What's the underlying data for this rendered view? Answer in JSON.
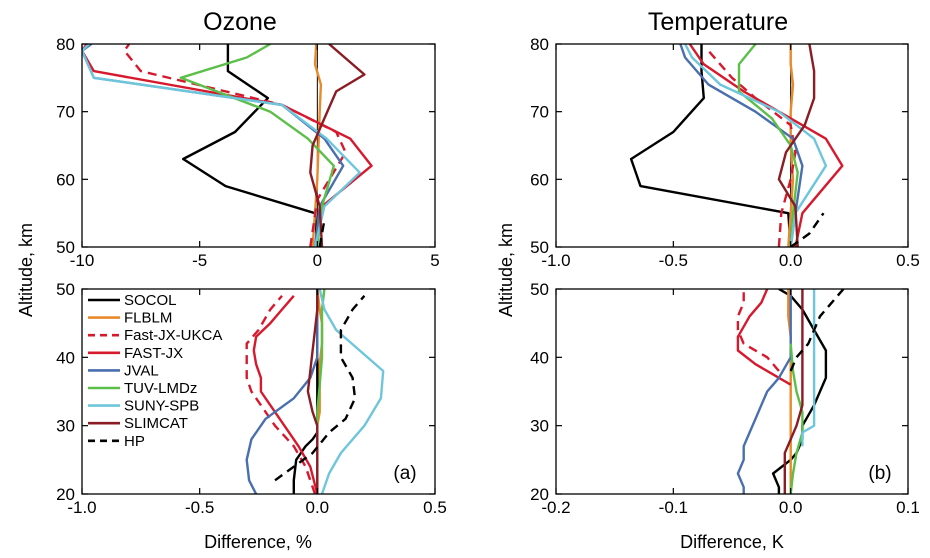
{
  "figure": {
    "ylabel": "Altitude, km",
    "titles": [
      "Ozone",
      "Temperature"
    ],
    "panel_labels": [
      "(a)",
      "(b)"
    ],
    "xlabels": [
      "Difference, %",
      "Difference, K"
    ]
  },
  "legend": [
    {
      "name": "SOCOL",
      "color": "#000000",
      "dash": false
    },
    {
      "name": "FLBLM",
      "color": "#e8892b",
      "dash": false
    },
    {
      "name": "Fast-JX-UKCA",
      "color": "#d7192e",
      "dash": true
    },
    {
      "name": "FAST-JX",
      "color": "#d7192e",
      "dash": false
    },
    {
      "name": "JVAL",
      "color": "#4a6faf",
      "dash": false
    },
    {
      "name": "TUV-LMDz",
      "color": "#5cbf4a",
      "dash": false
    },
    {
      "name": "SUNY-SPB",
      "color": "#6ec6dc",
      "dash": false
    },
    {
      "name": "SLIMCAT",
      "color": "#8b1c24",
      "dash": false
    },
    {
      "name": "HP",
      "color": "#000000",
      "dash": true
    }
  ],
  "chart_data": [
    {
      "type": "line",
      "title": "Ozone",
      "panel": "upper-left",
      "xlabel": "",
      "ylabel": "Altitude, km",
      "xlim": [
        -10,
        5
      ],
      "ylim": [
        50,
        80
      ],
      "xticks": [
        -10,
        -5,
        0,
        5
      ],
      "xtick_labels": [
        "-10",
        "-5",
        "0",
        "5"
      ],
      "yticks": [
        50,
        60,
        70,
        80
      ],
      "ytick_labels": [
        "50",
        "60",
        "70",
        "80"
      ],
      "series": [
        {
          "name": "SOCOL",
          "x": [
            0,
            -0.1,
            -3.9,
            -5.7,
            -3.5,
            -2.1,
            -3.8,
            -3.8
          ],
          "y": [
            50,
            55,
            59,
            63,
            67,
            72,
            76,
            80
          ]
        },
        {
          "name": "FLBLM",
          "x": [
            -0.2,
            -0.1,
            0,
            0.05,
            0.1,
            0.15,
            -0.1,
            -0.05
          ],
          "y": [
            50,
            55,
            60,
            65,
            70,
            74,
            77,
            80
          ]
        },
        {
          "name": "Fast-JX-UKCA",
          "x": [
            -0.3,
            0,
            1.2,
            0.8,
            -1.5,
            -7.5,
            -8.2,
            -8.0
          ],
          "y": [
            50,
            57,
            64,
            67,
            71,
            76,
            79,
            80
          ]
        },
        {
          "name": "FAST-JX",
          "x": [
            -0.1,
            0.2,
            2.3,
            1.4,
            -1.5,
            -9.5,
            -10,
            -9.8
          ],
          "y": [
            50,
            56,
            62,
            66,
            71,
            76,
            79,
            80
          ]
        },
        {
          "name": "JVAL",
          "x": [
            -0.1,
            0.1,
            1.1,
            0.3,
            -1.5,
            -9.5,
            -10,
            -9.6
          ],
          "y": [
            50,
            56,
            62,
            66,
            71,
            75,
            79,
            80
          ]
        },
        {
          "name": "TUV-LMDz",
          "x": [
            0,
            0.2,
            0.7,
            -0.4,
            -2.0,
            -5.8,
            -3.0,
            -2.0
          ],
          "y": [
            50,
            56,
            62,
            66,
            70,
            75,
            78,
            80
          ]
        },
        {
          "name": "SUNY-SPB",
          "x": [
            -0.1,
            0.3,
            1.8,
            0.4,
            -1.5,
            -9.5,
            -10,
            -9.7
          ],
          "y": [
            50,
            56,
            61,
            66,
            71,
            75,
            79,
            80
          ]
        },
        {
          "name": "SLIMCAT",
          "x": [
            0.2,
            0.1,
            -0.3,
            -0.2,
            0.3,
            0.8,
            2.0,
            0.5
          ],
          "y": [
            50,
            56,
            61,
            65,
            69,
            73,
            75.5,
            80
          ]
        },
        {
          "name": "HP",
          "x": [
            0.1,
            0.3
          ],
          "y": [
            50,
            54
          ]
        }
      ]
    },
    {
      "type": "line",
      "title": "Ozone",
      "panel": "lower-left",
      "xlabel": "Difference, %",
      "ylabel": "Altitude, km",
      "xlim": [
        -1.0,
        0.5
      ],
      "ylim": [
        20,
        50
      ],
      "xticks": [
        -1.0,
        -0.5,
        0,
        0.5
      ],
      "xtick_labels": [
        "-1.0",
        "-0.5",
        "0.0",
        "0.5"
      ],
      "yticks": [
        20,
        30,
        40,
        50
      ],
      "ytick_labels": [
        "20",
        "30",
        "40",
        "50"
      ],
      "series": [
        {
          "name": "SOCOL",
          "x": [
            -0.1,
            -0.1,
            -0.09,
            -0.07,
            -0.05,
            -0.02,
            0,
            0,
            0,
            0
          ],
          "y": [
            20,
            22,
            25,
            26,
            27,
            28,
            29,
            35,
            42,
            50
          ]
        },
        {
          "name": "FLBLM",
          "x": [
            0,
            0,
            0,
            0,
            0.01,
            0.01,
            0.01,
            0.02,
            0.02,
            0.01,
            0
          ],
          "y": [
            20,
            25,
            28,
            30,
            32,
            36,
            39,
            42,
            45,
            47,
            50
          ]
        },
        {
          "name": "Fast-JX-UKCA",
          "x": [
            -0.01,
            -0.05,
            -0.1,
            -0.18,
            -0.24,
            -0.28,
            -0.3,
            -0.3,
            -0.3,
            -0.25,
            -0.2,
            -0.15
          ],
          "y": [
            20,
            24,
            27,
            30,
            33,
            35,
            37,
            40,
            42,
            44,
            47,
            49
          ]
        },
        {
          "name": "FAST-JX",
          "x": [
            0,
            -0.03,
            -0.08,
            -0.14,
            -0.2,
            -0.24,
            -0.24,
            -0.26,
            -0.27,
            -0.26,
            -0.2,
            -0.15,
            -0.1
          ],
          "y": [
            20,
            24,
            27,
            30,
            33,
            35,
            37,
            39,
            41,
            43,
            45,
            47,
            49
          ]
        },
        {
          "name": "JVAL",
          "x": [
            -0.26,
            -0.29,
            -0.3,
            -0.28,
            -0.22,
            -0.1,
            -0.03,
            0,
            0,
            0
          ],
          "y": [
            20,
            22,
            25,
            28,
            31,
            34,
            37,
            40,
            45,
            50
          ]
        },
        {
          "name": "TUV-LMDz",
          "x": [
            0,
            0,
            0,
            0,
            0,
            0.01,
            0.02,
            0.02,
            0.02,
            0.03
          ],
          "y": [
            20,
            25,
            28,
            30,
            32,
            36,
            40,
            44,
            47,
            50
          ]
        },
        {
          "name": "SUNY-SPB",
          "x": [
            0.02,
            0.05,
            0.1,
            0.2,
            0.27,
            0.28,
            0.18,
            0.08,
            0.03,
            0.01
          ],
          "y": [
            20,
            23,
            26,
            30,
            34,
            38,
            41,
            44,
            47,
            50
          ]
        },
        {
          "name": "SLIMCAT",
          "x": [
            0,
            0,
            0,
            0,
            -0.02,
            -0.04,
            -0.03,
            -0.02,
            -0.01,
            0,
            0
          ],
          "y": [
            20,
            25,
            28,
            30,
            32,
            35,
            38,
            41,
            44,
            47,
            50
          ]
        },
        {
          "name": "HP",
          "x": [
            -0.18,
            -0.1,
            -0.02,
            0.05,
            0.12,
            0.16,
            0.15,
            0.1,
            0.1,
            0.15,
            0.2
          ],
          "y": [
            22,
            24,
            26,
            29,
            31,
            34,
            37,
            40,
            44,
            47,
            49
          ]
        }
      ]
    },
    {
      "type": "line",
      "title": "Temperature",
      "panel": "upper-right",
      "xlabel": "",
      "ylabel": "Altitude, km",
      "xlim": [
        -1.0,
        0.5
      ],
      "ylim": [
        50,
        80
      ],
      "xticks": [
        -1.0,
        -0.5,
        0,
        0.5
      ],
      "xtick_labels": [
        "-1.0",
        "-0.5",
        "0.0",
        "0.5"
      ],
      "yticks": [
        50,
        60,
        70,
        80
      ],
      "ytick_labels": [
        "50",
        "60",
        "70",
        "80"
      ],
      "series": [
        {
          "name": "SOCOL",
          "x": [
            0,
            -0.01,
            -0.64,
            -0.68,
            -0.5,
            -0.37,
            -0.38,
            -0.38
          ],
          "y": [
            50,
            55,
            59,
            63,
            67,
            72,
            76,
            80
          ]
        },
        {
          "name": "FLBLM",
          "x": [
            -0.01,
            0,
            0.01,
            0,
            0,
            0.01,
            0,
            0
          ],
          "y": [
            50,
            55,
            60,
            65,
            70,
            74,
            77,
            80
          ]
        },
        {
          "name": "Fast-JX-UKCA",
          "x": [
            -0.05,
            -0.04,
            0,
            0.02,
            0,
            -0.15,
            -0.25,
            -0.35
          ],
          "y": [
            50,
            55,
            60,
            64,
            68,
            72,
            75,
            79
          ]
        },
        {
          "name": "FAST-JX",
          "x": [
            0.02,
            0.05,
            0.22,
            0.15,
            0,
            -0.2,
            -0.37,
            -0.43
          ],
          "y": [
            50,
            55,
            62,
            66,
            69,
            73,
            77,
            80
          ]
        },
        {
          "name": "JVAL",
          "x": [
            0,
            0.02,
            0.05,
            0.01,
            -0.15,
            -0.35,
            -0.45,
            -0.47
          ],
          "y": [
            50,
            55,
            62,
            66,
            70,
            74,
            78,
            80
          ]
        },
        {
          "name": "TUV-LMDz",
          "x": [
            0,
            0.01,
            0.03,
            0,
            -0.08,
            -0.22,
            -0.22,
            -0.15
          ],
          "y": [
            50,
            55,
            61,
            65,
            69,
            73,
            77,
            80
          ]
        },
        {
          "name": "SUNY-SPB",
          "x": [
            0,
            0.02,
            0.15,
            0.1,
            -0.05,
            -0.3,
            -0.42,
            -0.45
          ],
          "y": [
            50,
            55,
            62,
            66,
            70,
            74,
            78,
            80
          ]
        },
        {
          "name": "SLIMCAT",
          "x": [
            0.03,
            0.02,
            -0.05,
            -0.02,
            0.06,
            0.1,
            0.1,
            0.08
          ],
          "y": [
            50,
            56,
            60,
            64,
            68,
            72,
            76,
            80
          ]
        },
        {
          "name": "HP",
          "x": [
            0,
            0.08,
            0.14
          ],
          "y": [
            50,
            52,
            55
          ]
        }
      ]
    },
    {
      "type": "line",
      "title": "Temperature",
      "panel": "lower-right",
      "xlabel": "Difference, K",
      "ylabel": "Altitude, km",
      "xlim": [
        -0.2,
        0.1
      ],
      "ylim": [
        20,
        50
      ],
      "xticks": [
        -0.2,
        -0.1,
        0,
        0.1
      ],
      "xtick_labels": [
        "-0.2",
        "-0.1",
        "0.0",
        "0.1"
      ],
      "yticks": [
        20,
        30,
        40,
        50
      ],
      "ytick_labels": [
        "20",
        "30",
        "40",
        "50"
      ],
      "series": [
        {
          "name": "SOCOL",
          "x": [
            -0.01,
            -0.01,
            -0.015,
            0,
            0.005,
            0.01,
            0.01,
            0.02,
            0.03,
            0.03,
            0.02,
            0.01,
            0,
            -0.01
          ],
          "y": [
            20,
            21,
            23,
            25,
            26,
            28,
            30,
            33,
            37,
            41,
            44,
            47,
            49,
            50
          ]
        },
        {
          "name": "FLBLM",
          "x": [
            0,
            0,
            0,
            0,
            0,
            0,
            -0.002,
            -0.002,
            -0.002
          ],
          "y": [
            20,
            25,
            30,
            35,
            40,
            43,
            46,
            48,
            50
          ]
        },
        {
          "name": "Fast-JX-UKCA",
          "x": [
            -0.01,
            -0.02,
            -0.04,
            -0.045,
            -0.045,
            -0.04,
            -0.04
          ],
          "y": [
            38,
            40,
            42,
            44,
            46,
            48,
            50
          ]
        },
        {
          "name": "FAST-JX",
          "x": [
            0,
            -0.01,
            -0.03,
            -0.045,
            -0.045,
            -0.035,
            -0.025,
            -0.02
          ],
          "y": [
            36,
            37,
            39,
            41,
            43,
            46,
            48,
            50
          ]
        },
        {
          "name": "JVAL",
          "x": [
            -0.04,
            -0.04,
            -0.045,
            -0.04,
            -0.04,
            -0.035,
            -0.03,
            -0.025,
            -0.02,
            -0.015,
            -0.01,
            0,
            0,
            0
          ],
          "y": [
            20,
            21,
            23,
            25,
            27,
            29,
            31,
            33,
            35,
            36,
            37,
            40,
            45,
            50
          ]
        },
        {
          "name": "TUV-LMDz",
          "x": [
            0,
            0.002,
            0.005,
            0.01,
            0.01,
            0.005,
            0.002,
            0
          ],
          "y": [
            20,
            23,
            26,
            29,
            32,
            35,
            38,
            42
          ]
        },
        {
          "name": "SUNY-SPB",
          "x": [
            0.01,
            0.01,
            0.02,
            0.02,
            0.02,
            0.02,
            0.02,
            0.02,
            0.02
          ],
          "y": [
            27,
            29,
            30,
            34,
            37,
            40,
            44,
            47,
            50
          ]
        },
        {
          "name": "SLIMCAT",
          "x": [
            -0.005,
            -0.005,
            -0.005,
            -0.005,
            0,
            0.005,
            0.01,
            0.01,
            0.01,
            0.01,
            0.01
          ],
          "y": [
            20,
            22,
            24,
            26,
            28,
            30,
            33,
            37,
            40,
            44,
            50
          ]
        },
        {
          "name": "HP",
          "x": [
            0,
            0.005,
            0.015,
            0.02,
            0.025,
            0.035,
            0.045
          ],
          "y": [
            38,
            40,
            42,
            44,
            46,
            48,
            50
          ]
        }
      ]
    }
  ]
}
